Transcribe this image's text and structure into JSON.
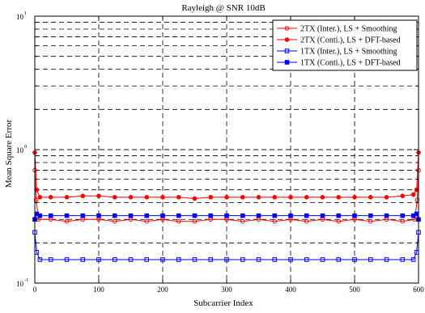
{
  "chart_data": {
    "type": "line",
    "title": "Rayleigh @ SNR 10dB",
    "xlabel": "Subcarrier Index",
    "ylabel": "Mean Square Error",
    "xlim": [
      0,
      600
    ],
    "ylim": [
      0.1,
      10
    ],
    "y_scale": "log",
    "grid": true,
    "grid_style": "dashed",
    "legend_position": "top-right",
    "x_ticks": [
      "0",
      "100",
      "200",
      "300",
      "400",
      "500",
      "600"
    ],
    "y_ticks": [
      {
        "mantissa": "10",
        "exponent": "-1"
      },
      {
        "mantissa": "10",
        "exponent": "0"
      },
      {
        "mantissa": "10",
        "exponent": "1"
      }
    ],
    "series": [
      {
        "name": "2TX (Inter.), LS + Smoothing",
        "color": "#ff0000",
        "marker": "open-circle",
        "x": [
          0,
          2,
          6,
          25,
          50,
          75,
          100,
          125,
          150,
          175,
          200,
          225,
          250,
          275,
          300,
          325,
          350,
          375,
          400,
          425,
          450,
          475,
          500,
          525,
          550,
          575,
          594,
          598,
          600
        ],
        "y": [
          0.7,
          0.42,
          0.3,
          0.3,
          0.29,
          0.3,
          0.3,
          0.29,
          0.3,
          0.29,
          0.3,
          0.29,
          0.29,
          0.3,
          0.3,
          0.29,
          0.3,
          0.29,
          0.3,
          0.29,
          0.3,
          0.29,
          0.3,
          0.29,
          0.3,
          0.29,
          0.3,
          0.42,
          0.7
        ]
      },
      {
        "name": "2TX (Conti.), LS + DFT-based",
        "color": "#ff0000",
        "marker": "filled-circle",
        "x": [
          0,
          3,
          8,
          25,
          50,
          75,
          100,
          125,
          150,
          175,
          200,
          225,
          250,
          275,
          300,
          325,
          350,
          375,
          400,
          425,
          450,
          475,
          500,
          525,
          550,
          575,
          592,
          597,
          600
        ],
        "y": [
          0.95,
          0.5,
          0.44,
          0.44,
          0.44,
          0.45,
          0.45,
          0.44,
          0.44,
          0.44,
          0.44,
          0.44,
          0.43,
          0.44,
          0.44,
          0.44,
          0.44,
          0.44,
          0.44,
          0.44,
          0.44,
          0.44,
          0.44,
          0.44,
          0.44,
          0.45,
          0.46,
          0.5,
          0.95
        ]
      },
      {
        "name": "1TX (Inter.), LS + Smoothing",
        "color": "#0000ff",
        "marker": "open-square",
        "x": [
          0,
          3,
          8,
          25,
          50,
          75,
          100,
          125,
          150,
          175,
          200,
          225,
          250,
          275,
          300,
          325,
          350,
          375,
          400,
          425,
          450,
          475,
          500,
          525,
          550,
          575,
          592,
          597,
          600
        ],
        "y": [
          0.24,
          0.17,
          0.15,
          0.15,
          0.15,
          0.15,
          0.15,
          0.15,
          0.15,
          0.15,
          0.15,
          0.15,
          0.15,
          0.15,
          0.15,
          0.15,
          0.15,
          0.15,
          0.15,
          0.15,
          0.15,
          0.15,
          0.15,
          0.15,
          0.15,
          0.15,
          0.15,
          0.17,
          0.24
        ]
      },
      {
        "name": "1TX (Conti.), LS + DFT-based",
        "color": "#0000ff",
        "marker": "filled-square",
        "x": [
          0,
          3,
          8,
          25,
          50,
          75,
          100,
          125,
          150,
          175,
          200,
          225,
          250,
          275,
          300,
          325,
          350,
          375,
          400,
          425,
          450,
          475,
          500,
          525,
          550,
          575,
          592,
          597,
          600
        ],
        "y": [
          0.3,
          0.33,
          0.32,
          0.32,
          0.32,
          0.32,
          0.32,
          0.32,
          0.32,
          0.32,
          0.32,
          0.32,
          0.32,
          0.32,
          0.32,
          0.32,
          0.32,
          0.32,
          0.32,
          0.32,
          0.32,
          0.32,
          0.32,
          0.32,
          0.32,
          0.32,
          0.32,
          0.33,
          0.3
        ]
      }
    ]
  }
}
